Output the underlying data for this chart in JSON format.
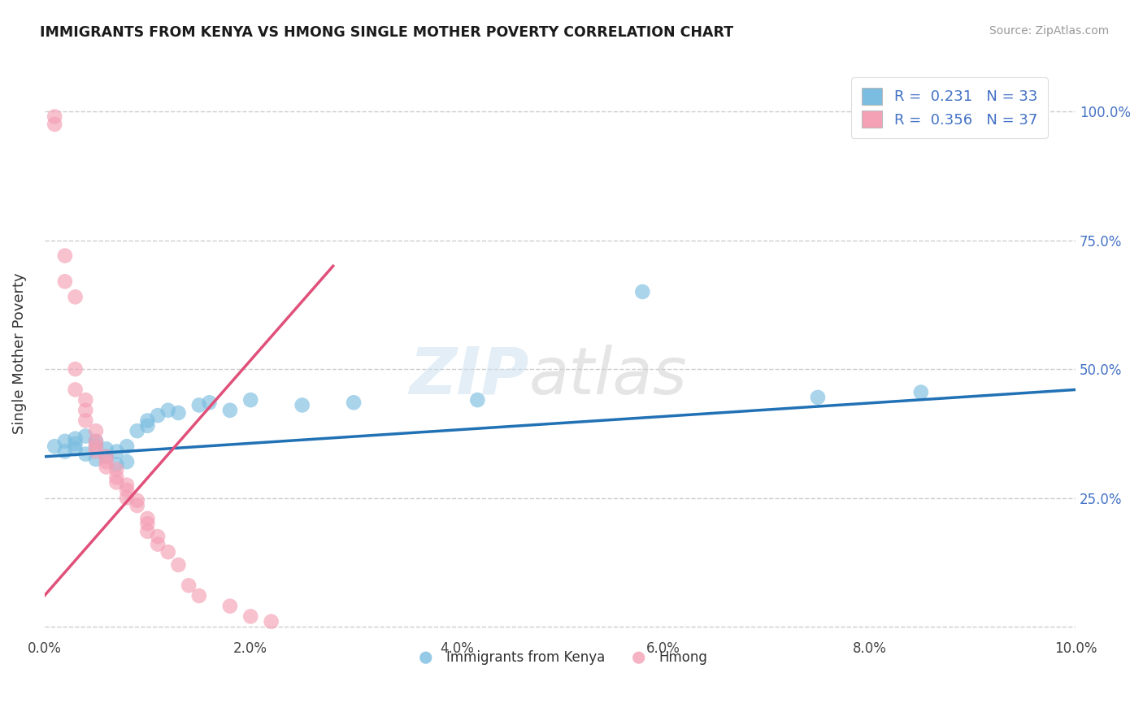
{
  "title": "IMMIGRANTS FROM KENYA VS HMONG SINGLE MOTHER POVERTY CORRELATION CHART",
  "source": "Source: ZipAtlas.com",
  "ylabel": "Single Mother Poverty",
  "y_ticks": [
    0.0,
    0.25,
    0.5,
    0.75,
    1.0
  ],
  "y_tick_labels": [
    "",
    "25.0%",
    "50.0%",
    "75.0%",
    "100.0%"
  ],
  "xlim": [
    0.0,
    0.1
  ],
  "ylim": [
    -0.02,
    1.08
  ],
  "kenya_color": "#7bbde0",
  "hmong_color": "#f4a0b5",
  "kenya_line_color": "#2171b5",
  "hmong_line_color": "#e0507a",
  "kenya_x": [
    0.001,
    0.002,
    0.002,
    0.003,
    0.003,
    0.003,
    0.004,
    0.004,
    0.005,
    0.005,
    0.005,
    0.006,
    0.006,
    0.007,
    0.007,
    0.008,
    0.008,
    0.009,
    0.01,
    0.01,
    0.011,
    0.012,
    0.013,
    0.015,
    0.016,
    0.018,
    0.02,
    0.025,
    0.03,
    0.042,
    0.058,
    0.075,
    0.085
  ],
  "kenya_y": [
    0.35,
    0.34,
    0.36,
    0.345,
    0.355,
    0.365,
    0.335,
    0.37,
    0.325,
    0.35,
    0.36,
    0.33,
    0.345,
    0.315,
    0.34,
    0.32,
    0.35,
    0.38,
    0.39,
    0.4,
    0.41,
    0.42,
    0.415,
    0.43,
    0.435,
    0.42,
    0.44,
    0.43,
    0.435,
    0.44,
    0.65,
    0.445,
    0.455
  ],
  "hmong_x": [
    0.001,
    0.001,
    0.002,
    0.002,
    0.003,
    0.003,
    0.003,
    0.004,
    0.004,
    0.004,
    0.005,
    0.005,
    0.005,
    0.005,
    0.006,
    0.006,
    0.006,
    0.007,
    0.007,
    0.007,
    0.008,
    0.008,
    0.008,
    0.009,
    0.009,
    0.01,
    0.01,
    0.01,
    0.011,
    0.011,
    0.012,
    0.013,
    0.014,
    0.015,
    0.018,
    0.02,
    0.022
  ],
  "hmong_y": [
    0.99,
    0.975,
    0.72,
    0.67,
    0.64,
    0.5,
    0.46,
    0.44,
    0.42,
    0.4,
    0.38,
    0.36,
    0.35,
    0.34,
    0.33,
    0.32,
    0.31,
    0.305,
    0.29,
    0.28,
    0.275,
    0.265,
    0.25,
    0.245,
    0.235,
    0.21,
    0.2,
    0.185,
    0.175,
    0.16,
    0.145,
    0.12,
    0.08,
    0.06,
    0.04,
    0.02,
    0.01
  ],
  "kenya_line_x": [
    0.0,
    0.1
  ],
  "kenya_line_y": [
    0.33,
    0.46
  ],
  "hmong_line_x": [
    0.0,
    0.028
  ],
  "hmong_line_y": [
    0.06,
    0.7
  ]
}
